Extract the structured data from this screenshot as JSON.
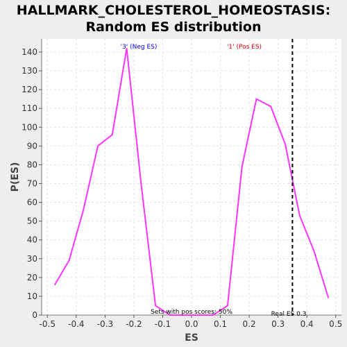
{
  "chart_data": {
    "type": "line",
    "title_line1": "HALLMARK_CHOLESTEROL_HOMEOSTASIS:",
    "title_line2": "Random ES distribution",
    "xlabel": "ES",
    "ylabel": "P(ES)",
    "xlim": [
      -0.52,
      0.52
    ],
    "ylim": [
      0,
      147
    ],
    "xticks": [
      -0.5,
      -0.4,
      -0.3,
      -0.2,
      -0.1,
      0.0,
      0.1,
      0.2,
      0.3,
      0.4,
      0.5
    ],
    "xtick_labels": [
      "-0.5",
      "-0.4",
      "-0.3",
      "-0.2",
      "-0.1",
      "0.0",
      "0.1",
      "0.2",
      "0.3",
      "0.4",
      "0.5"
    ],
    "yticks": [
      0,
      10,
      20,
      30,
      40,
      50,
      60,
      70,
      80,
      90,
      100,
      110,
      120,
      130,
      140
    ],
    "grid": true,
    "series": [
      {
        "color": "#ff33ff",
        "x": [
          -0.475,
          -0.425,
          -0.375,
          -0.325,
          -0.275,
          -0.225,
          -0.175,
          -0.125,
          -0.075,
          -0.025,
          0.025,
          0.075,
          0.125,
          0.175,
          0.225,
          0.275,
          0.325,
          0.375,
          0.425,
          0.475
        ],
        "y": [
          16,
          29,
          56,
          90,
          96,
          142,
          70,
          5,
          0,
          0,
          0,
          0,
          5,
          79,
          115,
          111,
          91,
          53,
          34,
          9
        ]
      }
    ],
    "real_es": {
      "x": 0.35,
      "label": "Real ES 0.3"
    },
    "annotations": {
      "neg_label": "'3' (Neg ES)",
      "pos_label": "'1' (Pos ES)",
      "neg_color": "#0000ff",
      "pos_color": "#ff0000",
      "sets_pos_text": "Sets with pos scores: 50%"
    }
  }
}
